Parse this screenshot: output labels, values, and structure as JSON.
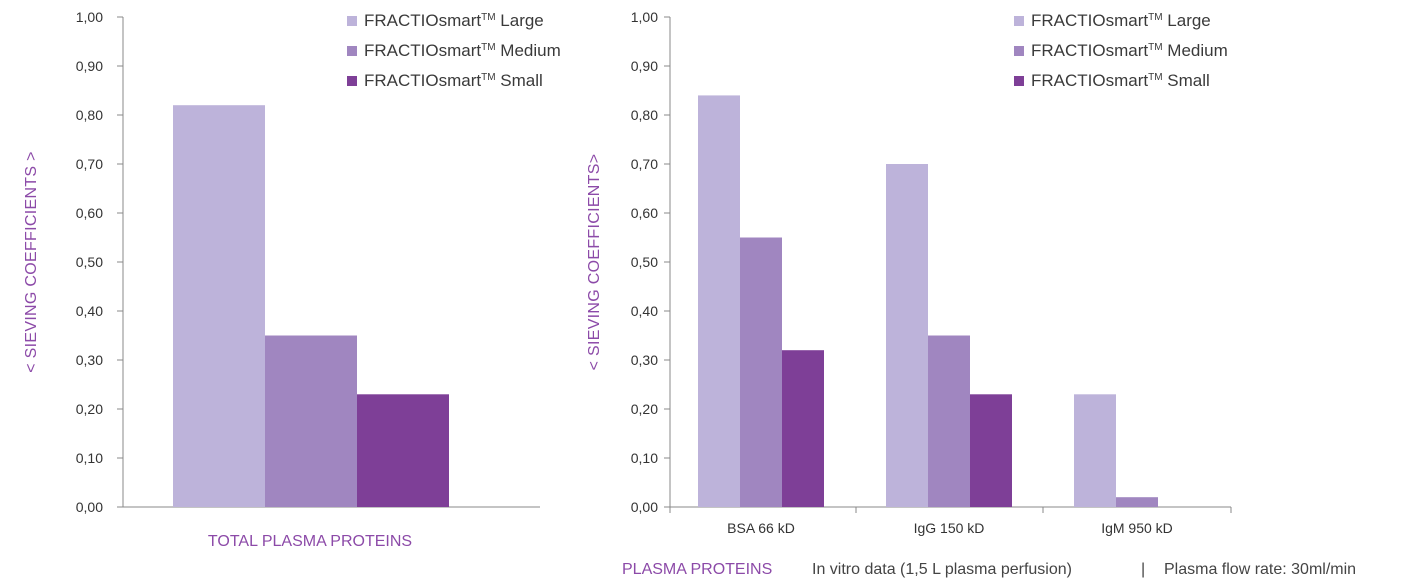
{
  "colors": {
    "large": "#bdb3da",
    "medium": "#a086c0",
    "small": "#7e3f97",
    "accent": "#8c4aa8",
    "axis": "#888888"
  },
  "footer": {
    "x_title": "PLASMA PROTEINS",
    "note": "In vitro data (1,5 L plasma perfusion)",
    "separator": "|",
    "flow_rate": "Plasma flow rate: 30ml/min"
  },
  "chart_data": [
    {
      "type": "bar",
      "categories": [
        ""
      ],
      "series": [
        {
          "name": "FRACTIOsmart™ Large",
          "legend_base": "FRACTIOsmart",
          "legend_sup": "TM",
          "legend_tail": "Large",
          "values": [
            0.82
          ]
        },
        {
          "name": "FRACTIOsmart™ Medium",
          "legend_base": "FRACTIOsmart",
          "legend_sup": "TM",
          "legend_tail": "Medium",
          "values": [
            0.35
          ]
        },
        {
          "name": "FRACTIOsmart™ Small",
          "legend_base": "FRACTIOsmart",
          "legend_sup": "TM",
          "legend_tail": "Small",
          "values": [
            0.23
          ]
        }
      ],
      "xlabel": "TOTAL PLASMA PROTEINS",
      "ylabel": "< SIEVING COEFFICIENTS >",
      "ylim": [
        0,
        1
      ],
      "yticks": [
        "0,00",
        "0,10",
        "0,20",
        "0,30",
        "0,40",
        "0,50",
        "0,60",
        "0,70",
        "0,80",
        "0,90",
        "1,00"
      ],
      "legend": "top-right",
      "grid": false
    },
    {
      "type": "bar",
      "categories": [
        "BSA 66 kD",
        "IgG 150 kD",
        "IgM 950 kD"
      ],
      "series": [
        {
          "name": "FRACTIOsmart™ Large",
          "legend_base": "FRACTIOsmart",
          "legend_sup": "TM",
          "legend_tail": "Large",
          "values": [
            0.84,
            0.7,
            0.23
          ]
        },
        {
          "name": "FRACTIOsmart™ Medium",
          "legend_base": "FRACTIOsmart",
          "legend_sup": "TM",
          "legend_tail": "Medium",
          "values": [
            0.55,
            0.35,
            0.02
          ]
        },
        {
          "name": "FRACTIOsmart™ Small",
          "legend_base": "FRACTIOsmart",
          "legend_sup": "TM",
          "legend_tail": "Small",
          "values": [
            0.32,
            0.23,
            0
          ]
        }
      ],
      "xlabel": "",
      "ylabel": "< SIEVING COEFFICIENTS>",
      "ylim": [
        0,
        1
      ],
      "yticks": [
        "0,00",
        "0,10",
        "0,20",
        "0,30",
        "0,40",
        "0,50",
        "0,60",
        "0,70",
        "0,80",
        "0,90",
        "1,00"
      ],
      "legend": "top-right",
      "grid": false
    }
  ]
}
